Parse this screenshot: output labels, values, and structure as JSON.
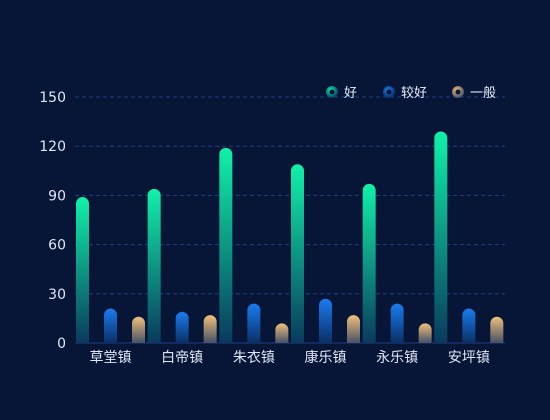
{
  "chart_data": {
    "type": "bar",
    "categories": [
      "草堂镇",
      "白帝镇",
      "朱衣镇",
      "康乐镇",
      "永乐镇",
      "安坪镇"
    ],
    "series": [
      {
        "name": "好",
        "values": [
          89,
          94,
          119,
          109,
          97,
          129
        ],
        "color_top": "#10f2a8",
        "color_bottom": "#0a3a5e"
      },
      {
        "name": "较好",
        "values": [
          21,
          19,
          24,
          27,
          24,
          21
        ],
        "color_top": "#1a7cf0",
        "color_bottom": "#0a2f66"
      },
      {
        "name": "一般",
        "values": [
          16,
          17,
          12,
          17,
          12,
          16
        ],
        "color_top": "#f0bf7a",
        "color_bottom": "#465165"
      }
    ],
    "yticks": [
      0,
      30,
      60,
      90,
      120,
      150
    ],
    "ylim": [
      0,
      150
    ],
    "grid": true,
    "legend_position": "top-right",
    "background": "#071636",
    "grid_color": "#1e3f86",
    "text_color": "#dfe6f5"
  }
}
